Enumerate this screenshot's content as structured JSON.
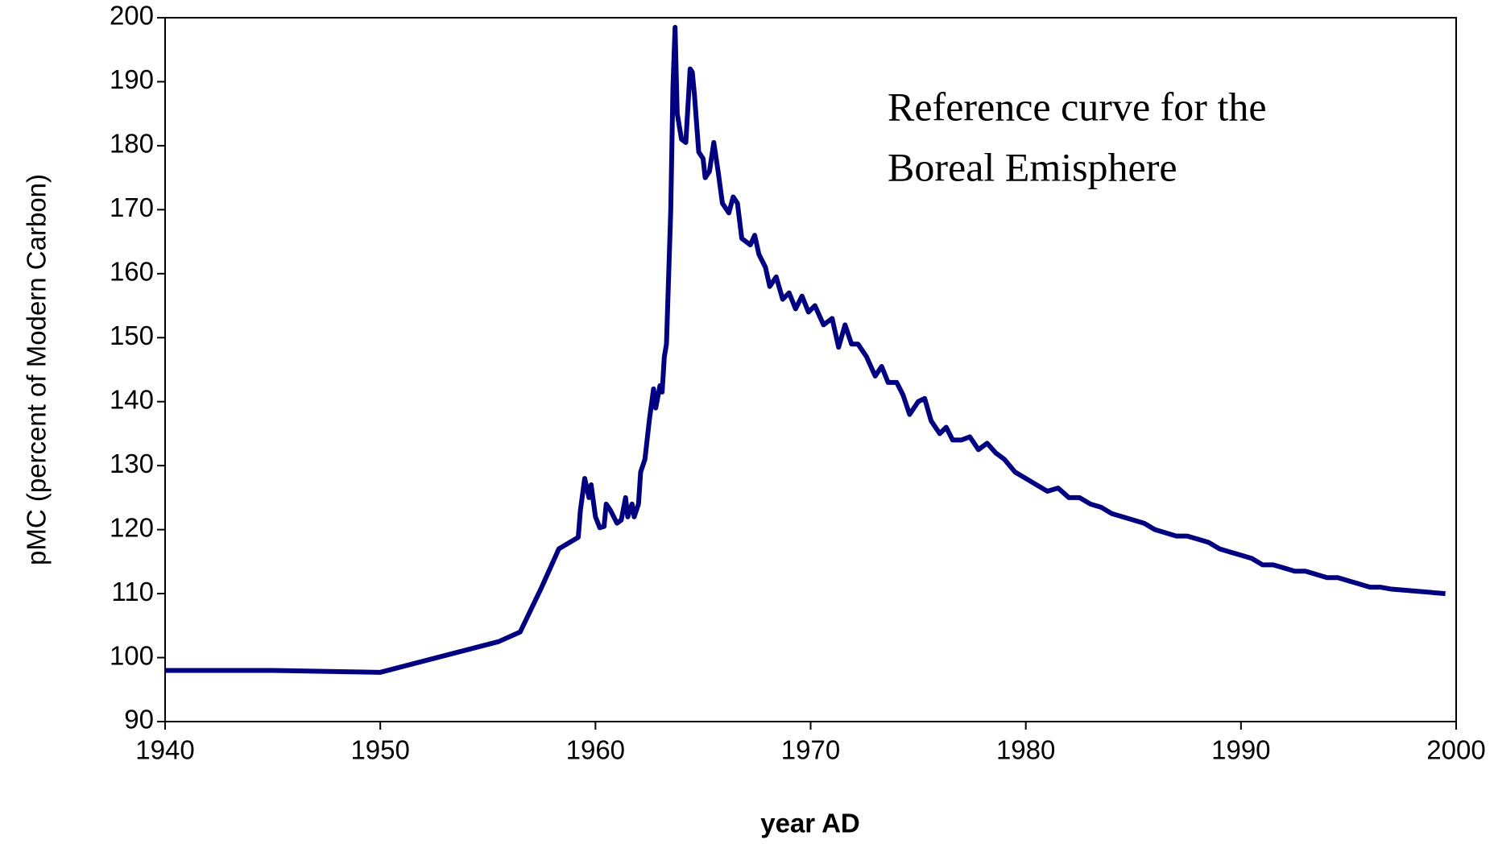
{
  "chart_data": {
    "type": "line",
    "y_label": "pMC (percent of Modern Carbon)",
    "x_label": "year AD",
    "annotation": [
      "Reference curve for the",
      "Boreal Emisphere"
    ],
    "color": "#000080",
    "x": [
      1940,
      1945,
      1950,
      1955.5,
      1956.5,
      1957.5,
      1958.3,
      1959.2,
      1959.3,
      1959.5,
      1959.7,
      1959.8,
      1960.0,
      1960.2,
      1960.4,
      1960.5,
      1960.7,
      1961.0,
      1961.2,
      1961.4,
      1961.5,
      1961.7,
      1961.8,
      1962.0,
      1962.1,
      1962.3,
      1962.5,
      1962.7,
      1962.8,
      1963.0,
      1963.1,
      1963.2,
      1963.3,
      1963.5,
      1963.6,
      1963.7,
      1963.8,
      1964.0,
      1964.2,
      1964.4,
      1964.5,
      1964.6,
      1964.8,
      1965.0,
      1965.1,
      1965.3,
      1965.5,
      1965.7,
      1965.9,
      1966.2,
      1966.4,
      1966.6,
      1966.8,
      1967.2,
      1967.4,
      1967.6,
      1967.9,
      1968.1,
      1968.4,
      1968.7,
      1969.0,
      1969.3,
      1969.6,
      1969.9,
      1970.2,
      1970.6,
      1971.0,
      1971.3,
      1971.6,
      1971.9,
      1972.2,
      1972.6,
      1973.0,
      1973.3,
      1973.6,
      1974.0,
      1974.3,
      1974.6,
      1975.0,
      1975.3,
      1975.6,
      1976.0,
      1976.3,
      1976.6,
      1977.0,
      1977.4,
      1977.8,
      1978.2,
      1978.6,
      1979.0,
      1979.5,
      1980.0,
      1980.5,
      1981.0,
      1981.5,
      1982.0,
      1982.5,
      1983.0,
      1983.5,
      1984.0,
      1984.5,
      1985.0,
      1985.5,
      1986.0,
      1986.5,
      1987.0,
      1987.5,
      1988.0,
      1988.5,
      1989.0,
      1989.5,
      1990.0,
      1990.5,
      1991.0,
      1991.5,
      1992.0,
      1992.5,
      1993.0,
      1993.5,
      1994.0,
      1994.5,
      1995.0,
      1995.5,
      1996.0,
      1996.5,
      1997.0,
      1999.5
    ],
    "values": [
      98,
      98,
      97.7,
      102.5,
      104,
      111,
      117,
      118.8,
      123,
      128,
      125,
      127,
      122,
      120.3,
      120.5,
      124,
      123,
      121,
      121.5,
      125,
      122,
      124,
      122,
      124,
      129,
      131,
      137,
      142,
      139,
      142.5,
      141.5,
      147,
      149,
      170,
      189,
      198.5,
      185,
      181,
      180.5,
      192,
      191.5,
      188,
      179,
      178,
      175,
      176,
      180.5,
      176,
      171,
      169.5,
      172,
      171,
      165.5,
      164.5,
      166,
      163,
      161,
      158,
      159.5,
      156,
      157,
      154.5,
      156.5,
      154,
      155,
      152,
      153,
      148.5,
      152,
      149,
      149,
      147,
      144,
      145.5,
      143,
      143,
      141,
      138,
      140,
      140.5,
      137,
      135,
      136,
      134,
      134,
      134.5,
      132.5,
      133.5,
      132,
      131,
      129,
      128,
      127,
      126,
      126.5,
      125,
      125,
      124,
      123.5,
      122.5,
      122,
      121.5,
      121,
      120,
      119.5,
      119,
      119,
      118.5,
      118,
      117,
      116.5,
      116,
      115.5,
      114.5,
      114.5,
      114,
      113.5,
      113.5,
      113,
      112.5,
      112.5,
      112,
      111.5,
      111,
      111,
      110.7,
      110
    ],
    "xlim": [
      1940,
      2000
    ],
    "xticks": [
      1940,
      1950,
      1960,
      1970,
      1980,
      1990,
      2000
    ],
    "ylim": [
      90,
      200
    ],
    "yticks": [
      90,
      100,
      110,
      120,
      130,
      140,
      150,
      160,
      170,
      180,
      190,
      200
    ]
  }
}
